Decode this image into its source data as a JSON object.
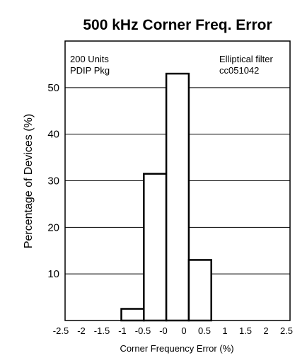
{
  "chart_data": {
    "type": "bar",
    "title": "500 kHz Corner Freq. Error",
    "xlabel": "Corner Frequency Error (%)",
    "ylabel": "Percentage of Devices (%)",
    "xlim": [
      -2.5,
      2.5
    ],
    "ylim": [
      0,
      60
    ],
    "x_ticks": [
      "-2.5",
      "-2",
      "-1.5",
      "-1",
      "-0.5",
      "-0",
      "0",
      "0.5",
      "1",
      "1.5",
      "2",
      "2.5"
    ],
    "y_ticks": [
      10,
      20,
      30,
      40,
      50
    ],
    "grid": "horizontal",
    "bars": [
      {
        "x_start": -1.25,
        "x_end": -0.75,
        "value": 2.5
      },
      {
        "x_start": -0.75,
        "x_end": -0.25,
        "value": 31.5
      },
      {
        "x_start": -0.25,
        "x_end": 0.25,
        "value": 53
      },
      {
        "x_start": 0.25,
        "x_end": 0.75,
        "value": 13
      }
    ],
    "annotations": {
      "top_left": [
        "200 Units",
        "PDIP Pkg"
      ],
      "top_right": [
        "Elliptical filter",
        "cc051042"
      ]
    }
  }
}
